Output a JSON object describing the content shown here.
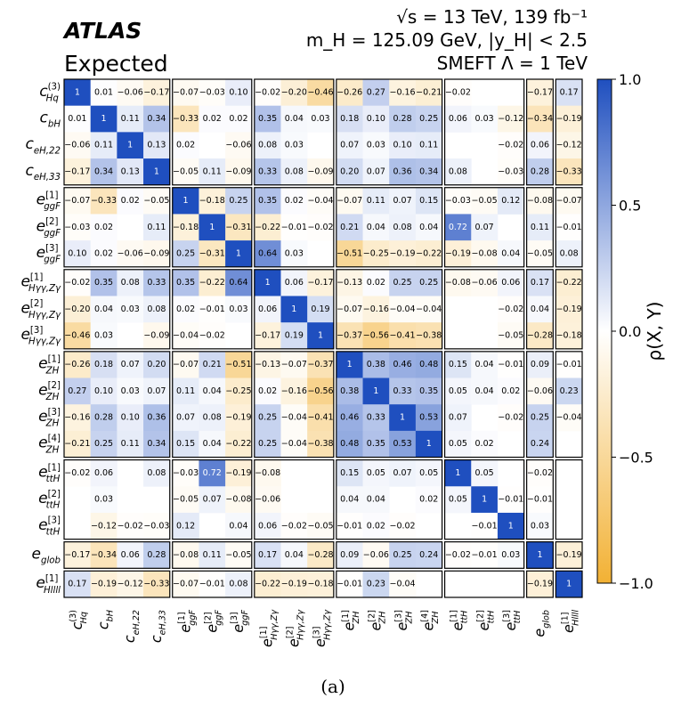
{
  "header": {
    "experiment": "ATLAS",
    "subtitle": "Expected",
    "energy_line": "√s = 13 TeV, 139 fb⁻¹",
    "mass_line": "m_H = 125.09 GeV, |y_H| < 2.5",
    "smeft_line": "SMEFT Λ = 1 TeV"
  },
  "caption": "(a)",
  "colorbar": {
    "label": "ρ(X, Y)",
    "ticks": [
      "1.0",
      "0.5",
      "0.0",
      "−0.5",
      "−1.0"
    ],
    "tick_values": [
      1.0,
      0.5,
      0.0,
      -0.5,
      -1.0
    ],
    "range": [
      -1,
      1
    ],
    "color_positive": "#1f4fbf",
    "color_zero": "#ffffff",
    "color_negative": "#f2b134"
  },
  "chart_data": {
    "type": "heatmap",
    "title": "",
    "xlabel": "",
    "ylabel": "",
    "parameters": [
      {
        "id": "cHq3",
        "base": "c",
        "sub": "Hq",
        "sup": "(3)"
      },
      {
        "id": "cbH",
        "base": "c",
        "sub": "bH",
        "sup": ""
      },
      {
        "id": "ceH22",
        "base": "c",
        "sub": "eH,22",
        "sup": ""
      },
      {
        "id": "ceH33",
        "base": "c",
        "sub": "eH,33",
        "sup": ""
      },
      {
        "id": "eggF1",
        "base": "e",
        "sub": "ggF",
        "sup": "[1]"
      },
      {
        "id": "eggF2",
        "base": "e",
        "sub": "ggF",
        "sup": "[2]"
      },
      {
        "id": "eggF3",
        "base": "e",
        "sub": "ggF",
        "sup": "[3]"
      },
      {
        "id": "eHgg1",
        "base": "e",
        "sub": "Hγγ,Zγ",
        "sup": "[1]"
      },
      {
        "id": "eHgg2",
        "base": "e",
        "sub": "Hγγ,Zγ",
        "sup": "[2]"
      },
      {
        "id": "eHgg3",
        "base": "e",
        "sub": "Hγγ,Zγ",
        "sup": "[3]"
      },
      {
        "id": "eZH1",
        "base": "e",
        "sub": "ZH",
        "sup": "[1]"
      },
      {
        "id": "eZH2",
        "base": "e",
        "sub": "ZH",
        "sup": "[2]"
      },
      {
        "id": "eZH3",
        "base": "e",
        "sub": "ZH",
        "sup": "[3]"
      },
      {
        "id": "eZH4",
        "base": "e",
        "sub": "ZH",
        "sup": "[4]"
      },
      {
        "id": "ettH1",
        "base": "e",
        "sub": "ttH",
        "sup": "[1]"
      },
      {
        "id": "ettH2",
        "base": "e",
        "sub": "ttH",
        "sup": "[2]"
      },
      {
        "id": "ettH3",
        "base": "e",
        "sub": "ttH",
        "sup": "[3]"
      },
      {
        "id": "eglob",
        "base": "e",
        "sub": "glob",
        "sup": ""
      },
      {
        "id": "eHllll1",
        "base": "e",
        "sub": "Hllll",
        "sup": "[1]"
      }
    ],
    "groups": [
      4,
      3,
      3,
      4,
      3,
      1,
      1
    ],
    "matrix": [
      [
        1,
        0.01,
        -0.06,
        -0.17,
        -0.07,
        -0.03,
        0.1,
        -0.02,
        -0.2,
        -0.46,
        -0.26,
        0.27,
        -0.16,
        -0.21,
        -0.02,
        null,
        null,
        -0.17,
        0.17
      ],
      [
        0.01,
        1,
        0.11,
        0.34,
        -0.33,
        0.02,
        0.02,
        0.35,
        0.04,
        0.03,
        0.18,
        0.1,
        0.28,
        0.25,
        0.06,
        0.03,
        -0.12,
        -0.34,
        -0.19
      ],
      [
        -0.06,
        0.11,
        1,
        0.13,
        0.02,
        null,
        -0.06,
        0.08,
        0.03,
        null,
        0.07,
        0.03,
        0.1,
        0.11,
        null,
        null,
        -0.02,
        0.06,
        -0.12
      ],
      [
        -0.17,
        0.34,
        0.13,
        1,
        -0.05,
        0.11,
        -0.09,
        0.33,
        0.08,
        -0.09,
        0.2,
        0.07,
        0.36,
        0.34,
        0.08,
        null,
        -0.03,
        0.28,
        -0.33
      ],
      [
        -0.07,
        -0.33,
        0.02,
        -0.05,
        1,
        -0.18,
        0.25,
        0.35,
        0.02,
        -0.04,
        -0.07,
        0.11,
        0.07,
        0.15,
        -0.03,
        -0.05,
        0.12,
        -0.08,
        -0.07
      ],
      [
        -0.03,
        0.02,
        null,
        0.11,
        -0.18,
        1,
        -0.31,
        -0.22,
        -0.01,
        -0.02,
        0.21,
        0.04,
        0.08,
        0.04,
        0.72,
        0.07,
        null,
        0.11,
        -0.01
      ],
      [
        0.1,
        0.02,
        -0.06,
        -0.09,
        0.25,
        -0.31,
        1,
        0.64,
        0.03,
        null,
        -0.51,
        -0.25,
        -0.19,
        -0.22,
        -0.19,
        -0.08,
        0.04,
        -0.05,
        0.08
      ],
      [
        -0.02,
        0.35,
        0.08,
        0.33,
        0.35,
        -0.22,
        0.64,
        1,
        0.06,
        -0.17,
        -0.13,
        0.02,
        0.25,
        0.25,
        -0.08,
        -0.06,
        0.06,
        0.17,
        -0.22
      ],
      [
        -0.2,
        0.04,
        0.03,
        0.08,
        0.02,
        -0.01,
        0.03,
        0.06,
        1,
        0.19,
        -0.07,
        -0.16,
        -0.04,
        -0.04,
        null,
        null,
        -0.02,
        0.04,
        -0.19
      ],
      [
        -0.46,
        0.03,
        null,
        -0.09,
        -0.04,
        -0.02,
        null,
        -0.17,
        0.19,
        1,
        -0.37,
        -0.56,
        -0.41,
        -0.38,
        null,
        null,
        -0.05,
        -0.28,
        -0.18
      ],
      [
        -0.26,
        0.18,
        0.07,
        0.2,
        -0.07,
        0.21,
        -0.51,
        -0.13,
        -0.07,
        -0.37,
        1,
        0.38,
        0.46,
        0.48,
        0.15,
        0.04,
        -0.01,
        0.09,
        -0.01
      ],
      [
        0.27,
        0.1,
        0.03,
        0.07,
        0.11,
        0.04,
        -0.25,
        0.02,
        -0.16,
        -0.56,
        0.38,
        1,
        0.33,
        0.35,
        0.05,
        0.04,
        0.02,
        -0.06,
        0.23
      ],
      [
        -0.16,
        0.28,
        0.1,
        0.36,
        0.07,
        0.08,
        -0.19,
        0.25,
        -0.04,
        -0.41,
        0.46,
        0.33,
        1,
        0.53,
        0.07,
        null,
        -0.02,
        0.25,
        -0.04
      ],
      [
        -0.21,
        0.25,
        0.11,
        0.34,
        0.15,
        0.04,
        -0.22,
        0.25,
        -0.04,
        -0.38,
        0.48,
        0.35,
        0.53,
        1,
        0.05,
        0.02,
        null,
        0.24,
        null
      ],
      [
        -0.02,
        0.06,
        null,
        0.08,
        -0.03,
        0.72,
        -0.19,
        -0.08,
        null,
        null,
        0.15,
        0.05,
        0.07,
        0.05,
        1,
        0.05,
        null,
        -0.02,
        null
      ],
      [
        null,
        0.03,
        null,
        null,
        -0.05,
        0.07,
        -0.08,
        -0.06,
        null,
        null,
        0.04,
        0.04,
        null,
        0.02,
        0.05,
        1,
        -0.01,
        -0.01,
        null
      ],
      [
        null,
        -0.12,
        -0.02,
        -0.03,
        0.12,
        null,
        0.04,
        0.06,
        -0.02,
        -0.05,
        -0.01,
        0.02,
        -0.02,
        null,
        null,
        -0.01,
        1,
        0.03,
        null
      ],
      [
        -0.17,
        -0.34,
        0.06,
        0.28,
        -0.08,
        0.11,
        -0.05,
        0.17,
        0.04,
        -0.28,
        0.09,
        -0.06,
        0.25,
        0.24,
        -0.02,
        -0.01,
        0.03,
        1,
        -0.19
      ],
      [
        0.17,
        -0.19,
        -0.12,
        -0.33,
        -0.07,
        -0.01,
        0.08,
        -0.22,
        -0.19,
        -0.18,
        -0.01,
        0.23,
        -0.04,
        null,
        null,
        null,
        null,
        -0.19,
        1
      ]
    ],
    "zlim": [
      -1,
      1
    ]
  }
}
